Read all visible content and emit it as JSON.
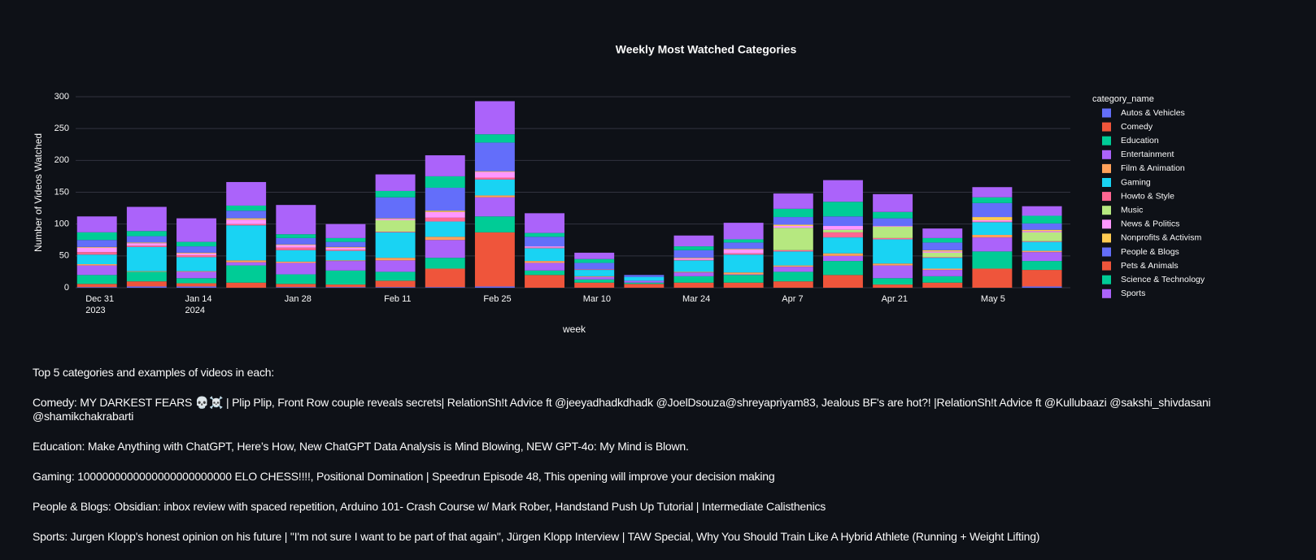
{
  "chart_data": {
    "type": "stacked_bar",
    "title": "Weekly Most Watched Categories",
    "x_label": "week",
    "y_label": "Number of Videos Watched",
    "legend_title": "category_name",
    "x": [
      "2023-12-31",
      "2024-01-07",
      "2024-01-14",
      "2024-01-21",
      "2024-01-28",
      "2024-02-04",
      "2024-02-11",
      "2024-02-18",
      "2024-02-25",
      "2024-03-03",
      "2024-03-10",
      "2024-03-17",
      "2024-03-24",
      "2024-03-31",
      "2024-04-07",
      "2024-04-14",
      "2024-04-21",
      "2024-04-28",
      "2024-05-05",
      "2024-05-12"
    ],
    "xlim": [
      "2023-12-28",
      "2024-05-16"
    ],
    "xticks": [
      {
        "value": "2023-12-31",
        "label": "Dec 31\n2023"
      },
      {
        "value": "2024-01-14",
        "label": "Jan 14\n2024"
      },
      {
        "value": "2024-01-28",
        "label": "Jan 28"
      },
      {
        "value": "2024-02-11",
        "label": "Feb 11"
      },
      {
        "value": "2024-02-25",
        "label": "Feb 25"
      },
      {
        "value": "2024-03-10",
        "label": "Mar 10"
      },
      {
        "value": "2024-03-24",
        "label": "Mar 24"
      },
      {
        "value": "2024-04-07",
        "label": "Apr 7"
      },
      {
        "value": "2024-04-21",
        "label": "Apr 21"
      },
      {
        "value": "2024-05-05",
        "label": "May 5"
      }
    ],
    "ylim": [
      0,
      300
    ],
    "yticks": [
      0,
      50,
      100,
      150,
      200,
      250,
      300
    ],
    "grid": true,
    "series": [
      {
        "name": "Autos & Vehicles",
        "color": "#636efa",
        "values": [
          1,
          2,
          2,
          0,
          1,
          1,
          1,
          1,
          2,
          0,
          0,
          0,
          0,
          0,
          0,
          0,
          0,
          0,
          0,
          2
        ]
      },
      {
        "name": "Comedy",
        "color": "#ef553b",
        "values": [
          5,
          8,
          5,
          8,
          5,
          4,
          10,
          29,
          85,
          20,
          8,
          6,
          8,
          8,
          10,
          20,
          5,
          8,
          30,
          26
        ]
      },
      {
        "name": "Education",
        "color": "#00cc96",
        "values": [
          14,
          15,
          8,
          27,
          15,
          22,
          14,
          17,
          25,
          7,
          5,
          2,
          10,
          12,
          15,
          22,
          10,
          10,
          27,
          14
        ]
      },
      {
        "name": "Entertainment",
        "color": "#ab63fa",
        "values": [
          15,
          0,
          10,
          5,
          18,
          15,
          18,
          28,
          30,
          12,
          4,
          3,
          6,
          1,
          8,
          8,
          20,
          10,
          22,
          14
        ]
      },
      {
        "name": "Film & Animation",
        "color": "#ffa15a",
        "values": [
          2,
          1,
          1,
          3,
          2,
          1,
          4,
          5,
          3,
          3,
          1,
          0,
          1,
          3,
          2,
          4,
          3,
          2,
          4,
          2
        ]
      },
      {
        "name": "Gaming",
        "color": "#19d3f3",
        "values": [
          15,
          38,
          22,
          55,
          18,
          15,
          40,
          24,
          25,
          20,
          10,
          6,
          18,
          28,
          22,
          25,
          38,
          17,
          20,
          14
        ]
      },
      {
        "name": "Howto & Style",
        "color": "#ff6692",
        "values": [
          4,
          2,
          3,
          2,
          4,
          2,
          1,
          6,
          3,
          1,
          1,
          0,
          1,
          2,
          2,
          8,
          2,
          1,
          1,
          1
        ]
      },
      {
        "name": "Music",
        "color": "#b6e880",
        "values": [
          0,
          0,
          0,
          0,
          0,
          0,
          18,
          0,
          0,
          0,
          0,
          0,
          0,
          0,
          35,
          4,
          18,
          7,
          0,
          14
        ]
      },
      {
        "name": "News & Politics",
        "color": "#ff97ff",
        "values": [
          7,
          4,
          3,
          7,
          4,
          3,
          2,
          9,
          9,
          2,
          0,
          0,
          2,
          6,
          3,
          6,
          1,
          2,
          2,
          2
        ]
      },
      {
        "name": "Nonprofits & Activism",
        "color": "#fecb52",
        "values": [
          1,
          1,
          1,
          2,
          1,
          1,
          1,
          2,
          1,
          0,
          0,
          0,
          1,
          1,
          2,
          0,
          0,
          2,
          5,
          2
        ]
      },
      {
        "name": "People & Blogs",
        "color": "#636efa",
        "values": [
          11,
          10,
          10,
          12,
          10,
          8,
          33,
          36,
          45,
          15,
          10,
          3,
          12,
          10,
          12,
          15,
          12,
          12,
          22,
          10
        ]
      },
      {
        "name": "Pets & Animals",
        "color": "#ef553b",
        "values": [
          0,
          0,
          0,
          0,
          0,
          0,
          0,
          0,
          0,
          0,
          0,
          0,
          0,
          0,
          0,
          0,
          0,
          0,
          0,
          0
        ]
      },
      {
        "name": "Science & Technology",
        "color": "#00cc96",
        "values": [
          12,
          8,
          7,
          8,
          6,
          6,
          10,
          18,
          13,
          6,
          6,
          0,
          6,
          5,
          13,
          23,
          10,
          7,
          9,
          12
        ]
      },
      {
        "name": "Sports",
        "color": "#ab63fa",
        "values": [
          25,
          38,
          37,
          37,
          46,
          22,
          26,
          33,
          52,
          31,
          10,
          0,
          17,
          26,
          24,
          34,
          28,
          15,
          16,
          15
        ]
      }
    ]
  },
  "text_block": {
    "heading": "Top 5 categories and examples of videos in each:",
    "lines": [
      "Comedy: MY DARKEST FEARS 💀☠️ | Plip Plip, Front Row couple reveals secrets| RelationSh!t Advice ft @jeeyadhadkdhadk @JoelDsouza@shreyapriyam83, Jealous BF's are hot?! |RelationSh!t Advice ft @Kullubaazi @sakshi_shivdasani @shamikchakrabarti",
      "Education: Make Anything with ChatGPT, Here’s How, New ChatGPT Data Analysis is Mind Blowing, NEW GPT-4o: My Mind is Blown.",
      "Gaming: 1000000000000000000000000 ELO CHESS!!!!, Positional Domination | Speedrun Episode 48, This opening will improve your decision making",
      "People & Blogs: Obsidian: inbox review with spaced repetition, Arduino 101- Crash Course w/ Mark Rober, Handstand Push Up Tutorial | Intermediate Calisthenics",
      "Sports: Jurgen Klopp's honest opinion on his future | \"I'm not sure I want to be part of that again\", Jürgen Klopp Interview | TAW Special, Why You Should Train Like A Hybrid Athlete (Running + Weight Lifting)"
    ]
  }
}
